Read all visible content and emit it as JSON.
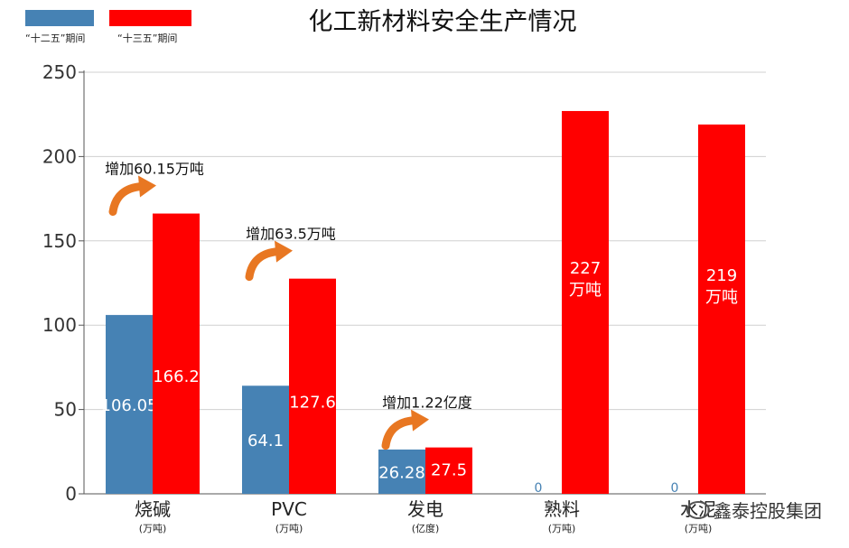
{
  "legend": [
    {
      "label": "“十二五”期间",
      "color": "#4682B4"
    },
    {
      "label": "“十三五”期间",
      "color": "#FF0000"
    }
  ],
  "chart_data": {
    "type": "bar",
    "title": "化工新材料安全生产情况",
    "categories": [
      "烧碱",
      "PVC",
      "发电",
      "熟料",
      "水泥"
    ],
    "category_units": [
      "(万吨)",
      "(万吨)",
      "(亿度)",
      "(万吨)",
      "(万吨)"
    ],
    "series": [
      {
        "name": "“十二五”期间",
        "color": "#4682B4",
        "values": [
          106.05,
          64.1,
          26.28,
          0,
          0
        ],
        "labels": [
          "106.05",
          "64.1",
          "26.28",
          "0",
          "0"
        ]
      },
      {
        "name": "“十三五”期间",
        "color": "#FF0000",
        "values": [
          166.2,
          127.6,
          27.5,
          227,
          219
        ],
        "labels": [
          "166.2",
          "127.6",
          "27.5",
          "227\n万吨",
          "219\n万吨"
        ]
      }
    ],
    "ylim": [
      0,
      250
    ],
    "yticks": [
      0,
      50,
      100,
      150,
      200,
      250
    ],
    "grid": true,
    "legend_position": "top-left",
    "annotations": [
      {
        "category": "烧碱",
        "text": "增加60.15万吨"
      },
      {
        "category": "PVC",
        "text": "增加63.5万吨"
      },
      {
        "category": "发电",
        "text": "增加1.22亿度"
      }
    ]
  },
  "watermark": "鑫泰控股集团"
}
